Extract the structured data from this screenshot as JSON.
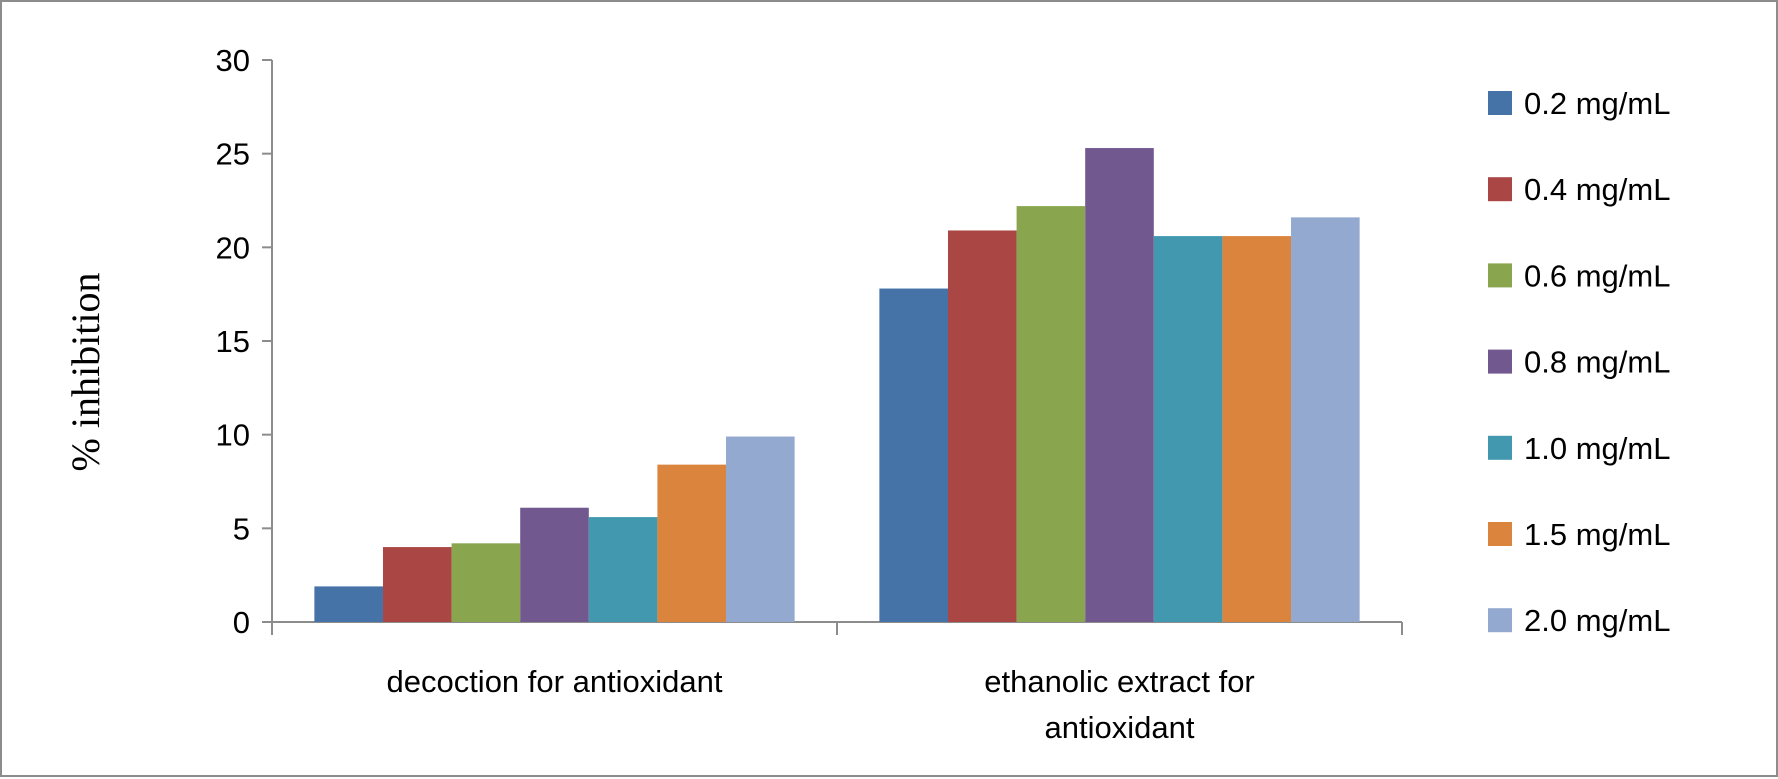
{
  "chart_data": {
    "type": "bar",
    "title": "",
    "xlabel": "",
    "ylabel": "% inhibition",
    "ylim": [
      0,
      30
    ],
    "yticks": [
      "0",
      "5",
      "10",
      "15",
      "20",
      "25",
      "30"
    ],
    "grid": false,
    "legend_position": "right",
    "categories": [
      [
        "decoction for antioxidant"
      ],
      [
        "ethanolic extract for",
        "antioxidant"
      ]
    ],
    "series": [
      {
        "name": "0.2 mg/mL",
        "color": "#4572a7",
        "values": [
          1.9,
          17.8
        ]
      },
      {
        "name": "0.4 mg/mL",
        "color": "#aa4643",
        "values": [
          4.0,
          20.9
        ]
      },
      {
        "name": "0.6 mg/mL",
        "color": "#89a54e",
        "values": [
          4.2,
          22.2
        ]
      },
      {
        "name": "0.8 mg/mL",
        "color": "#71588f",
        "values": [
          6.1,
          25.3
        ]
      },
      {
        "name": "1.0 mg/mL",
        "color": "#4198af",
        "values": [
          5.6,
          20.6
        ]
      },
      {
        "name": "1.5 mg/mL",
        "color": "#db843d",
        "values": [
          8.4,
          20.6
        ]
      },
      {
        "name": "2.0 mg/mL",
        "color": "#93a9cf",
        "values": [
          9.9,
          21.6
        ]
      }
    ]
  }
}
